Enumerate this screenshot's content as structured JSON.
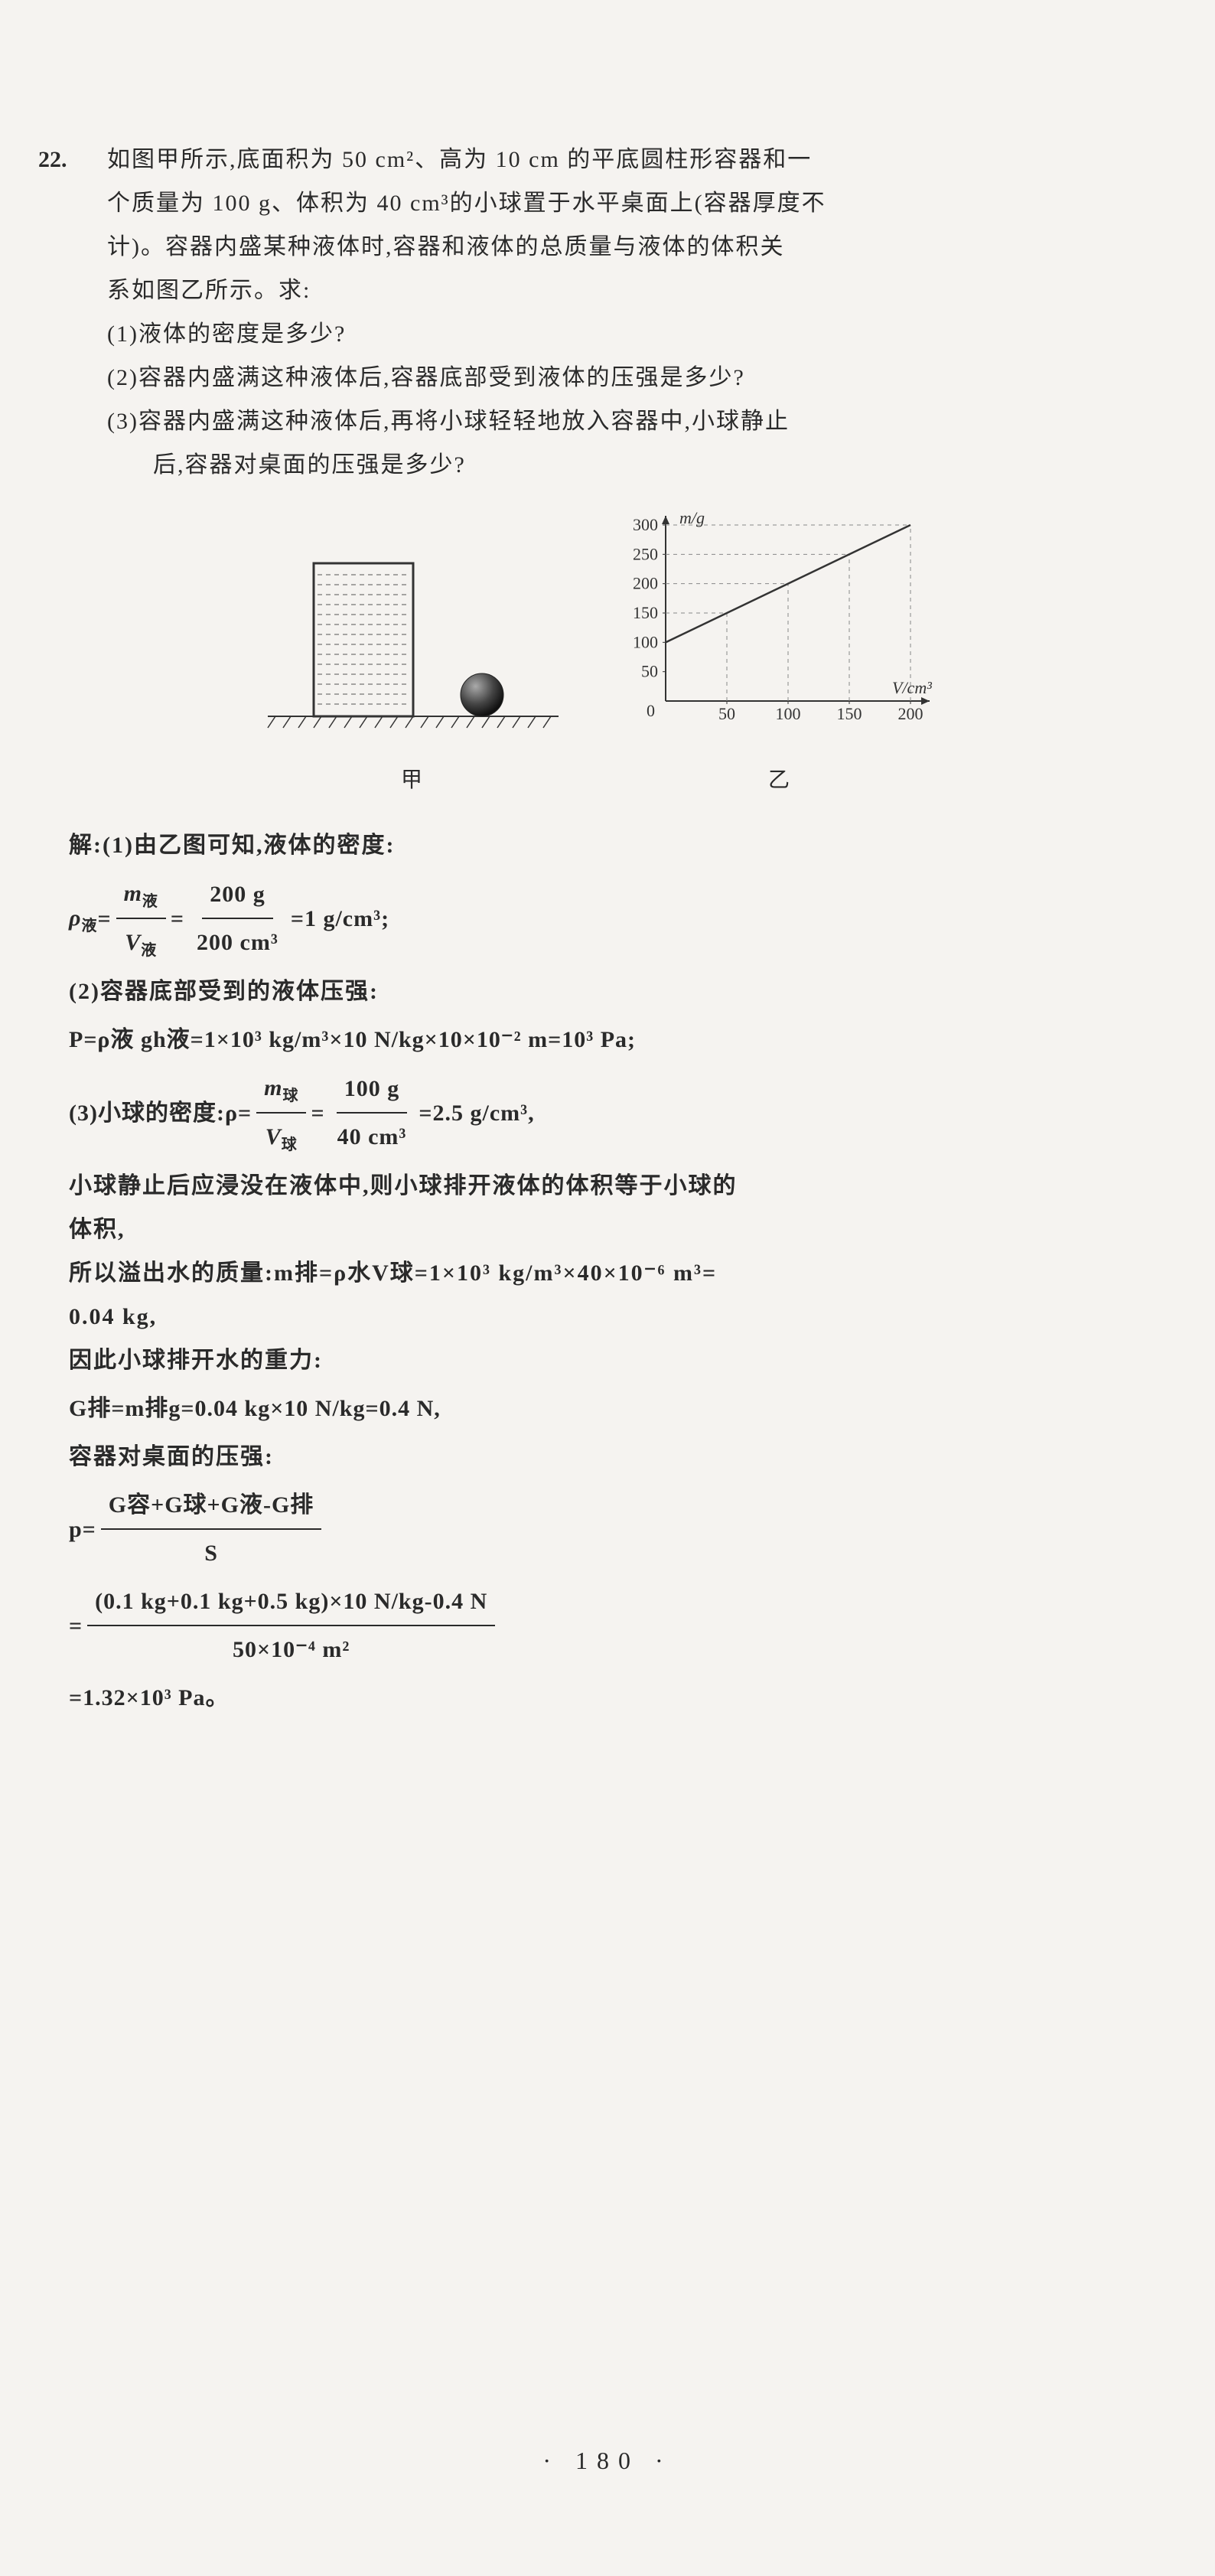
{
  "problem": {
    "number": "22.",
    "text_line1": "如图甲所示,底面积为 50 cm²、高为 10 cm 的平底圆柱形容器和一",
    "text_line2": "个质量为 100 g、体积为 40 cm³的小球置于水平桌面上(容器厚度不",
    "text_line3": "计)。容器内盛某种液体时,容器和液体的总质量与液体的体积关",
    "text_line4": "系如图乙所示。求:",
    "q1": "(1)液体的密度是多少?",
    "q2": "(2)容器内盛满这种液体后,容器底部受到液体的压强是多少?",
    "q3_1": "(3)容器内盛满这种液体后,再将小球轻轻地放入容器中,小球静止",
    "q3_2": "后,容器对桌面的压强是多少?"
  },
  "figure1": {
    "label": "甲",
    "container_fill": "#d8d8d8",
    "container_stroke": "#333333",
    "ball_fill": "#444444",
    "ground_hatch_color": "#333333"
  },
  "figure2": {
    "label": "乙",
    "y_label": "m/g",
    "x_label": "V/cm³",
    "y_ticks": [
      "50",
      "100",
      "150",
      "200",
      "250",
      "300"
    ],
    "x_ticks": [
      "50",
      "100",
      "150",
      "200"
    ],
    "y_max": 300,
    "x_max": 200,
    "y_intercept": 100,
    "line_stroke": "#333333",
    "dash_color": "#888888",
    "axis_color": "#333333",
    "bg": "none"
  },
  "solution": {
    "s1_head": "解:(1)由乙图可知,液体的密度:",
    "s1_lhs": "ρ",
    "s1_sub_rho": "液",
    "s1_eq1": "=",
    "s1_frac1_num": "m",
    "s1_frac1_num_sub": "液",
    "s1_frac1_den": "V",
    "s1_frac1_den_sub": "液",
    "s1_eq2": "=",
    "s1_frac2_num": "200 g",
    "s1_frac2_den": "200 cm³",
    "s1_res": "=1 g/cm³;",
    "s2_head": "(2)容器底部受到的液体压强:",
    "s2_eq": "P=ρ液 gh液=1×10³ kg/m³×10 N/kg×10×10⁻² m=10³ Pa;",
    "s3_head": "(3)小球的密度:ρ=",
    "s3_frac1_num": "m",
    "s3_frac1_num_sub": "球",
    "s3_frac1_den": "V",
    "s3_frac1_den_sub": "球",
    "s3_eq1": "=",
    "s3_frac2_num": "100 g",
    "s3_frac2_den": "40 cm³",
    "s3_res": "=2.5 g/cm³,",
    "s4_1": "小球静止后应浸没在液体中,则小球排开液体的体积等于小球的",
    "s4_2": "体积,",
    "s5_1": "所以溢出水的质量:m排=ρ水V球=1×10³ kg/m³×40×10⁻⁶ m³=",
    "s5_2": "0.04 kg,",
    "s6": "因此小球排开水的重力:",
    "s7": "G排=m排g=0.04 kg×10 N/kg=0.4 N,",
    "s8": "容器对桌面的压强:",
    "s9_lhs": "p=",
    "s9_num": "G容+G球+G液-G排",
    "s9_den": "S",
    "s10_eq": "=",
    "s10_num": "(0.1 kg+0.1 kg+0.5 kg)×10 N/kg-0.4 N",
    "s10_den": "50×10⁻⁴ m²",
    "s11": "=1.32×10³ Pa。"
  },
  "page_num": "· 180 ·",
  "colors": {
    "page_bg": "#f5f3f0",
    "text": "#2a2a2a"
  }
}
